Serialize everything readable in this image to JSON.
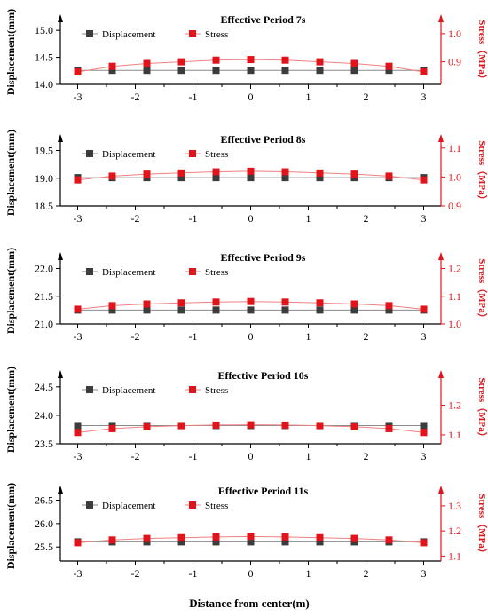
{
  "xlabel": "Distance from center(m)",
  "colors": {
    "displacement": "#3c3c3c",
    "stress": "#e0141a",
    "stress_line": "#f08080"
  },
  "chart_data": [
    {
      "type": "line",
      "title": "Effective Period 7s",
      "xlabel": "",
      "ylabel": "Displacement(mm)",
      "y2label": "Stress（MPa）",
      "xlim": [
        -3.3,
        3.3
      ],
      "ylim": [
        14.0,
        15.2
      ],
      "y2lim": [
        0.82,
        1.05
      ],
      "xticks": [
        -3,
        -2,
        -1,
        0,
        1,
        2,
        3
      ],
      "yticks": [
        14.0,
        14.5,
        15.0
      ],
      "y2ticks": [
        0.9,
        1.0
      ],
      "x": [
        -3,
        -2.4,
        -1.8,
        -1.2,
        -0.6,
        0,
        0.6,
        1.2,
        1.8,
        2.4,
        3
      ],
      "series": [
        {
          "name": "Displacement",
          "axis": "left",
          "values": [
            14.26,
            14.26,
            14.26,
            14.26,
            14.26,
            14.26,
            14.26,
            14.26,
            14.26,
            14.26,
            14.26
          ]
        },
        {
          "name": "Stress",
          "axis": "right",
          "values": [
            0.864,
            0.884,
            0.894,
            0.9,
            0.906,
            0.908,
            0.906,
            0.9,
            0.894,
            0.884,
            0.864
          ]
        }
      ]
    },
    {
      "type": "line",
      "title": "Effective Period 8s",
      "xlabel": "",
      "ylabel": "Displacement(mm)",
      "y2label": "Stress（MPa）",
      "xlim": [
        -3.3,
        3.3
      ],
      "ylim": [
        18.5,
        19.7
      ],
      "y2lim": [
        0.9,
        1.13
      ],
      "xticks": [
        -3,
        -2,
        -1,
        0,
        1,
        2,
        3
      ],
      "yticks": [
        18.5,
        19.0,
        19.5
      ],
      "y2ticks": [
        0.9,
        1.0,
        1.1
      ],
      "x": [
        -3,
        -2.4,
        -1.8,
        -1.2,
        -0.6,
        0,
        0.6,
        1.2,
        1.8,
        2.4,
        3
      ],
      "series": [
        {
          "name": "Displacement",
          "axis": "left",
          "values": [
            19.01,
            19.01,
            19.01,
            19.01,
            19.01,
            19.01,
            19.01,
            19.01,
            19.01,
            19.01,
            19.01
          ]
        },
        {
          "name": "Stress",
          "axis": "right",
          "values": [
            0.99,
            1.003,
            1.01,
            1.014,
            1.018,
            1.02,
            1.018,
            1.014,
            1.01,
            1.003,
            0.99
          ]
        }
      ]
    },
    {
      "type": "line",
      "title": "Effective Period 9s",
      "xlabel": "",
      "ylabel": "Displacement(mm)",
      "y2label": "Stress（MPa）",
      "xlim": [
        -3.3,
        3.3
      ],
      "ylim": [
        21.0,
        22.2
      ],
      "y2lim": [
        1.0,
        1.24
      ],
      "xticks": [
        -3,
        -2,
        -1,
        0,
        1,
        2,
        3
      ],
      "yticks": [
        21.0,
        21.5,
        22.0
      ],
      "y2ticks": [
        1.0,
        1.1,
        1.2
      ],
      "x": [
        -3,
        -2.4,
        -1.8,
        -1.2,
        -0.6,
        0,
        0.6,
        1.2,
        1.8,
        2.4,
        3
      ],
      "series": [
        {
          "name": "Displacement",
          "axis": "left",
          "values": [
            21.25,
            21.25,
            21.25,
            21.25,
            21.25,
            21.25,
            21.25,
            21.25,
            21.25,
            21.25,
            21.25
          ]
        },
        {
          "name": "Stress",
          "axis": "right",
          "values": [
            1.053,
            1.066,
            1.072,
            1.076,
            1.079,
            1.081,
            1.079,
            1.076,
            1.072,
            1.066,
            1.053
          ]
        }
      ]
    },
    {
      "type": "line",
      "title": "Effective Period 10s",
      "xlabel": "",
      "ylabel": "Displacement(mm)",
      "y2label": "Stress（MPa）",
      "xlim": [
        -3.3,
        3.3
      ],
      "ylim": [
        23.5,
        24.7
      ],
      "y2lim": [
        1.07,
        1.3
      ],
      "xticks": [
        -3,
        -2,
        -1,
        0,
        1,
        2,
        3
      ],
      "yticks": [
        23.5,
        24.0,
        24.5
      ],
      "y2ticks": [
        1.1,
        1.2
      ],
      "x": [
        -3,
        -2.4,
        -1.8,
        -1.2,
        -0.6,
        0,
        0.6,
        1.2,
        1.8,
        2.4,
        3
      ],
      "series": [
        {
          "name": "Displacement",
          "axis": "left",
          "values": [
            23.82,
            23.82,
            23.82,
            23.82,
            23.82,
            23.82,
            23.82,
            23.82,
            23.82,
            23.82,
            23.82
          ]
        },
        {
          "name": "Stress",
          "axis": "right",
          "values": [
            1.108,
            1.121,
            1.127,
            1.131,
            1.133,
            1.134,
            1.133,
            1.131,
            1.127,
            1.121,
            1.108
          ]
        }
      ]
    },
    {
      "type": "line",
      "title": "Effective Period 11s",
      "xlabel": "Distance from center(m)",
      "ylabel": "Displacement(mm)",
      "y2label": "Stress（MPa）",
      "xlim": [
        -3.3,
        3.3
      ],
      "ylim": [
        25.2,
        26.7
      ],
      "y2lim": [
        1.08,
        1.36
      ],
      "xticks": [
        -3,
        -2,
        -1,
        0,
        1,
        2,
        3
      ],
      "yticks": [
        25.5,
        26.0,
        26.5
      ],
      "y2ticks": [
        1.1,
        1.2,
        1.3
      ],
      "x": [
        -3,
        -2.4,
        -1.8,
        -1.2,
        -0.6,
        0,
        0.6,
        1.2,
        1.8,
        2.4,
        3
      ],
      "series": [
        {
          "name": "Displacement",
          "axis": "left",
          "values": [
            25.61,
            25.61,
            25.61,
            25.61,
            25.61,
            25.61,
            25.61,
            25.61,
            25.61,
            25.61,
            25.61
          ]
        },
        {
          "name": "Stress",
          "axis": "right",
          "values": [
            1.153,
            1.164,
            1.17,
            1.173,
            1.176,
            1.178,
            1.176,
            1.173,
            1.17,
            1.164,
            1.153
          ]
        }
      ]
    }
  ]
}
